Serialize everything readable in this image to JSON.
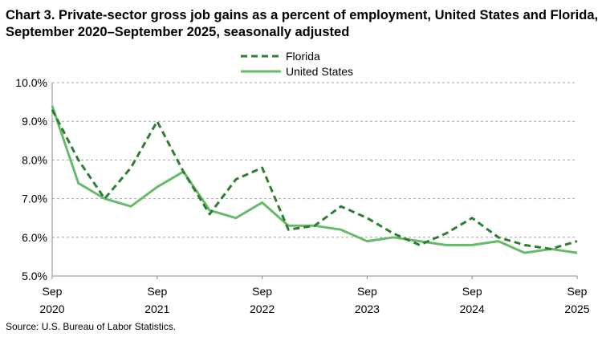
{
  "title": "Chart 3. Private-sector gross job gains as a percent of employment, United States and Florida, September 2020–September 2025, seasonally adjusted",
  "source": "Source: U.S. Bureau of Labor Statistics.",
  "chart_data": {
    "type": "line",
    "title": "Chart 3. Private-sector gross job gains as a percent of employment, United States and Florida, September 2020–September 2025, seasonally adjusted",
    "xlabel": "",
    "ylabel": "",
    "ylim": [
      5.0,
      10.0
    ],
    "y_ticks": [
      "5.0%",
      "6.0%",
      "7.0%",
      "8.0%",
      "9.0%",
      "10.0%"
    ],
    "y_tick_values": [
      5,
      6,
      7,
      8,
      9,
      10
    ],
    "x_tick_labels": [
      {
        "index": 0,
        "line1": "Sep",
        "line2": "2020"
      },
      {
        "index": 4,
        "line1": "Sep",
        "line2": "2021"
      },
      {
        "index": 8,
        "line1": "Sep",
        "line2": "2022"
      },
      {
        "index": 12,
        "line1": "Sep",
        "line2": "2023"
      },
      {
        "index": 16,
        "line1": "Sep",
        "line2": "2024"
      },
      {
        "index": 20,
        "line1": "Sep",
        "line2": "2025"
      }
    ],
    "x": [
      "Sep 2020",
      "Dec 2020",
      "Mar 2021",
      "Jun 2021",
      "Sep 2021",
      "Dec 2021",
      "Mar 2022",
      "Jun 2022",
      "Sep 2022",
      "Dec 2022",
      "Mar 2023",
      "Jun 2023",
      "Sep 2023",
      "Dec 2023",
      "Mar 2024",
      "Jun 2024",
      "Sep 2024",
      "Dec 2024",
      "Mar 2025",
      "Jun 2025",
      "Sep 2025"
    ],
    "grid": "horizontal dashed",
    "legend_placement": "top-center",
    "series": [
      {
        "name": "Florida",
        "style": "dashed",
        "color": "#2e7d32",
        "values": [
          9.3,
          8.0,
          7.0,
          7.8,
          9.0,
          7.7,
          6.6,
          7.5,
          7.8,
          6.2,
          6.3,
          6.8,
          6.5,
          6.1,
          5.8,
          6.1,
          6.5,
          6.0,
          5.8,
          5.7,
          5.9
        ]
      },
      {
        "name": "United States",
        "style": "solid",
        "color": "#66bb6a",
        "values": [
          9.4,
          7.4,
          7.0,
          6.8,
          7.3,
          7.7,
          6.7,
          6.5,
          6.9,
          6.3,
          6.3,
          6.2,
          5.9,
          6.0,
          5.9,
          5.8,
          5.8,
          5.9,
          5.6,
          5.7,
          5.6
        ]
      }
    ]
  }
}
